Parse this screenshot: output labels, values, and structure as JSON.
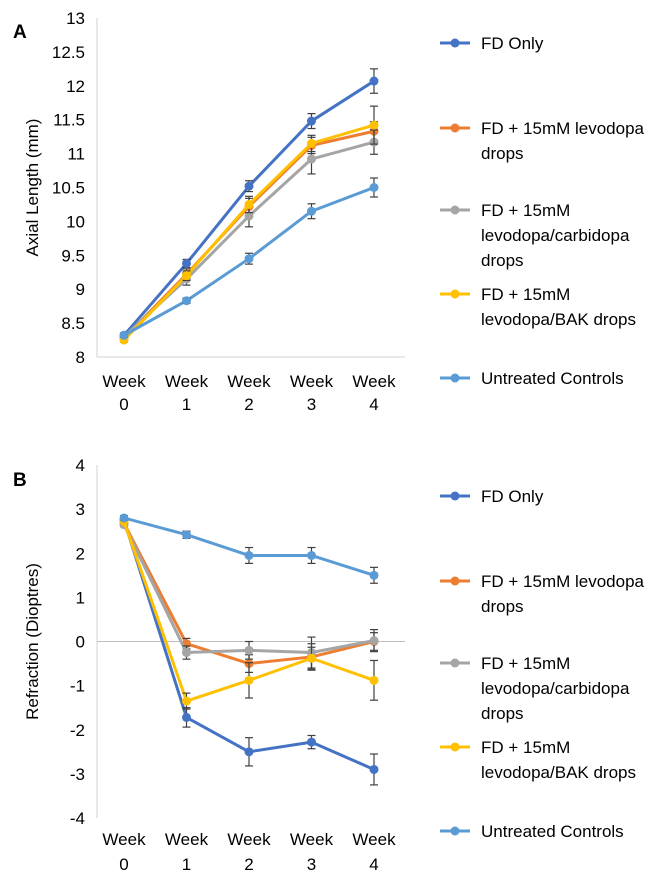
{
  "chart_data": [
    {
      "type": "line",
      "panel": "A",
      "ylabel": "Axial Length (mm)",
      "xlabel": "",
      "ylim": [
        8,
        13
      ],
      "yticks": [
        "8",
        "8.5",
        "9",
        "9.5",
        "10",
        "10.5",
        "11",
        "11.5",
        "12",
        "12.5",
        "13"
      ],
      "categories": [
        [
          "Week",
          "0"
        ],
        [
          "Week",
          "1"
        ],
        [
          "Week",
          "2"
        ],
        [
          "Week",
          "3"
        ],
        [
          "Week",
          "4"
        ]
      ],
      "grid": false,
      "legend_position": "right",
      "series": [
        {
          "name": [
            "FD Only"
          ],
          "color": "#4472C4",
          "values": [
            8.32,
            9.38,
            10.52,
            11.48,
            12.07
          ],
          "errors": [
            0.03,
            0.06,
            0.08,
            0.11,
            0.18
          ]
        },
        {
          "name": [
            "FD + 15mM levodopa",
            "drops"
          ],
          "color": "#ED7D31",
          "values": [
            8.28,
            9.22,
            10.22,
            11.12,
            11.33
          ],
          "errors": [
            0.03,
            0.08,
            0.12,
            0.12,
            0.14
          ]
        },
        {
          "name": [
            "FD + 15mM",
            "levodopa/carbidopa",
            "drops"
          ],
          "color": "#A5A5A5",
          "values": [
            8.3,
            9.15,
            10.08,
            10.92,
            11.17
          ],
          "errors": [
            0.03,
            0.09,
            0.16,
            0.22,
            0.18
          ]
        },
        {
          "name": [
            "FD + 15mM",
            "levodopa/BAK drops"
          ],
          "color": "#FFC000",
          "values": [
            8.25,
            9.2,
            10.25,
            11.15,
            11.42
          ],
          "errors": [
            0.03,
            0.07,
            0.12,
            0.12,
            0.28
          ]
        },
        {
          "name": [
            "Untreated Controls"
          ],
          "color": "#5B9BD5",
          "values": [
            8.32,
            8.83,
            9.45,
            10.15,
            10.5
          ],
          "errors": [
            0.03,
            0.04,
            0.08,
            0.11,
            0.14
          ]
        }
      ]
    },
    {
      "type": "line",
      "panel": "B",
      "ylabel": "Refraction (Dioptres)",
      "xlabel": "",
      "ylim": [
        -4,
        4
      ],
      "yticks": [
        "-4",
        "-3",
        "-2",
        "-1",
        "0",
        "1",
        "2",
        "3",
        "4"
      ],
      "categories": [
        [
          "Week",
          "0"
        ],
        [
          "Week",
          "1"
        ],
        [
          "Week",
          "2"
        ],
        [
          "Week",
          "3"
        ],
        [
          "Week",
          "4"
        ]
      ],
      "grid": false,
      "zero_line": true,
      "legend_position": "right",
      "series": [
        {
          "name": [
            "FD Only"
          ],
          "color": "#4472C4",
          "values": [
            2.75,
            -1.72,
            -2.5,
            -2.28,
            -2.9
          ],
          "errors": [
            0.05,
            0.22,
            0.32,
            0.15,
            0.35
          ]
        },
        {
          "name": [
            "FD + 15mM levodopa",
            "drops"
          ],
          "color": "#ED7D31",
          "values": [
            2.68,
            -0.05,
            -0.5,
            -0.35,
            0.0
          ],
          "errors": [
            0.05,
            0.12,
            0.2,
            0.3,
            0.2
          ]
        },
        {
          "name": [
            "FD + 15mM",
            "levodopa/carbidopa",
            "drops"
          ],
          "color": "#A5A5A5",
          "values": [
            2.65,
            -0.25,
            -0.2,
            -0.25,
            0.02
          ],
          "errors": [
            0.05,
            0.15,
            0.2,
            0.35,
            0.25
          ]
        },
        {
          "name": [
            "FD + 15mM",
            "levodopa/BAK drops"
          ],
          "color": "#FFC000",
          "values": [
            2.72,
            -1.35,
            -0.88,
            -0.38,
            -0.88
          ],
          "errors": [
            0.05,
            0.18,
            0.4,
            0.25,
            0.45
          ]
        },
        {
          "name": [
            "Untreated Controls"
          ],
          "color": "#5B9BD5",
          "values": [
            2.8,
            2.42,
            1.95,
            1.95,
            1.5
          ],
          "errors": [
            0.05,
            0.08,
            0.18,
            0.18,
            0.18
          ]
        }
      ]
    }
  ]
}
